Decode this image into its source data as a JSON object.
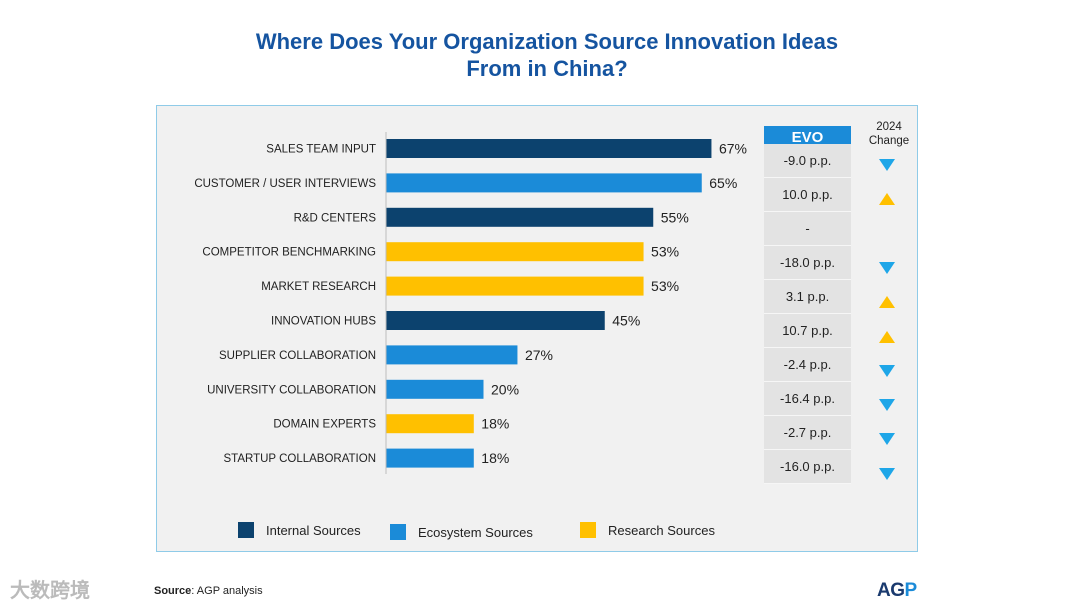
{
  "title_line1": "Where Does Your Organization Source Innovation Ideas",
  "title_line2": "From in China?",
  "colors": {
    "internal": "#0c426e",
    "ecosystem": "#1b8bd8",
    "research": "#ffc000",
    "up": "#ffc000",
    "down": "#1ea6e8"
  },
  "chart_data": {
    "type": "bar",
    "orientation": "horizontal",
    "title": "Where Does Your Organization Source Innovation Ideas From in China?",
    "categories": [
      "SALES TEAM INPUT",
      "CUSTOMER / USER INTERVIEWS",
      "R&D CENTERS",
      "COMPETITOR BENCHMARKING",
      "MARKET RESEARCH",
      "INNOVATION HUBS",
      "SUPPLIER COLLABORATION",
      "UNIVERSITY COLLABORATION",
      "DOMAIN EXPERTS",
      "STARTUP COLLABORATION"
    ],
    "values": [
      67,
      65,
      55,
      53,
      53,
      45,
      27,
      20,
      18,
      18
    ],
    "value_labels": [
      "67%",
      "65%",
      "55%",
      "53%",
      "53%",
      "45%",
      "27%",
      "20%",
      "18%",
      "18%"
    ],
    "groups": [
      "internal",
      "ecosystem",
      "internal",
      "research",
      "research",
      "internal",
      "ecosystem",
      "ecosystem",
      "research",
      "ecosystem"
    ],
    "xlim": [
      0,
      100
    ],
    "legend": [
      {
        "key": "internal",
        "label": "Internal Sources"
      },
      {
        "key": "ecosystem",
        "label": "Ecosystem Sources"
      },
      {
        "key": "research",
        "label": "Research Sources"
      }
    ],
    "legend_position": "bottom"
  },
  "evo": {
    "header": "EVO",
    "change_header_line1": "2024",
    "change_header_line2": "Change",
    "values": [
      "-9.0 p.p.",
      "10.0 p.p.",
      "-",
      "-18.0 p.p.",
      "3.1 p.p.",
      "10.7 p.p.",
      "-2.4 p.p.",
      "-16.4 p.p.",
      "-2.7 p.p.",
      "-16.0 p.p."
    ],
    "direction": [
      "down",
      "up",
      "none",
      "down",
      "up",
      "up",
      "down",
      "down",
      "down",
      "down"
    ]
  },
  "source": {
    "label": "Source",
    "text": ": AGP analysis"
  },
  "logo": {
    "text": "AG",
    "accent": "P"
  },
  "watermark": "大数跨境"
}
